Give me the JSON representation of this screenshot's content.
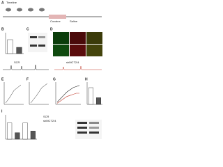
{
  "panel_labels": [
    "A",
    "B",
    "C",
    "D",
    "E",
    "F",
    "G",
    "H",
    "I"
  ],
  "timeline": {
    "title": "Timeline",
    "events": [
      "Cocaine",
      "Saline"
    ]
  },
  "groups": [
    "SCR",
    "shMCT2/4"
  ],
  "bar_panels": [
    {
      "ylim": [
        0,
        1.5
      ],
      "values": [
        1.0,
        0.45
      ],
      "colors": [
        "#ffffff",
        "#555555"
      ]
    },
    {
      "ylim": [
        0,
        40
      ],
      "values": [
        30,
        12
      ],
      "colors": [
        "#ffffff",
        "#555555"
      ]
    },
    {
      "ylim": [
        0,
        1.5
      ],
      "values": [
        1.0,
        0.4,
        1.0,
        0.5
      ],
      "colors": [
        "#ffffff",
        "#555555",
        "#ffffff",
        "#555555"
      ]
    }
  ],
  "line_panel": {
    "ylim": [
      0,
      20
    ],
    "series": [
      {
        "color": "#222222",
        "values": [
          2,
          5,
          8,
          11,
          13,
          15,
          16,
          17
        ]
      },
      {
        "color": "#c0392b",
        "values": [
          1,
          3,
          5,
          7,
          8,
          9,
          10,
          10
        ]
      }
    ]
  }
}
